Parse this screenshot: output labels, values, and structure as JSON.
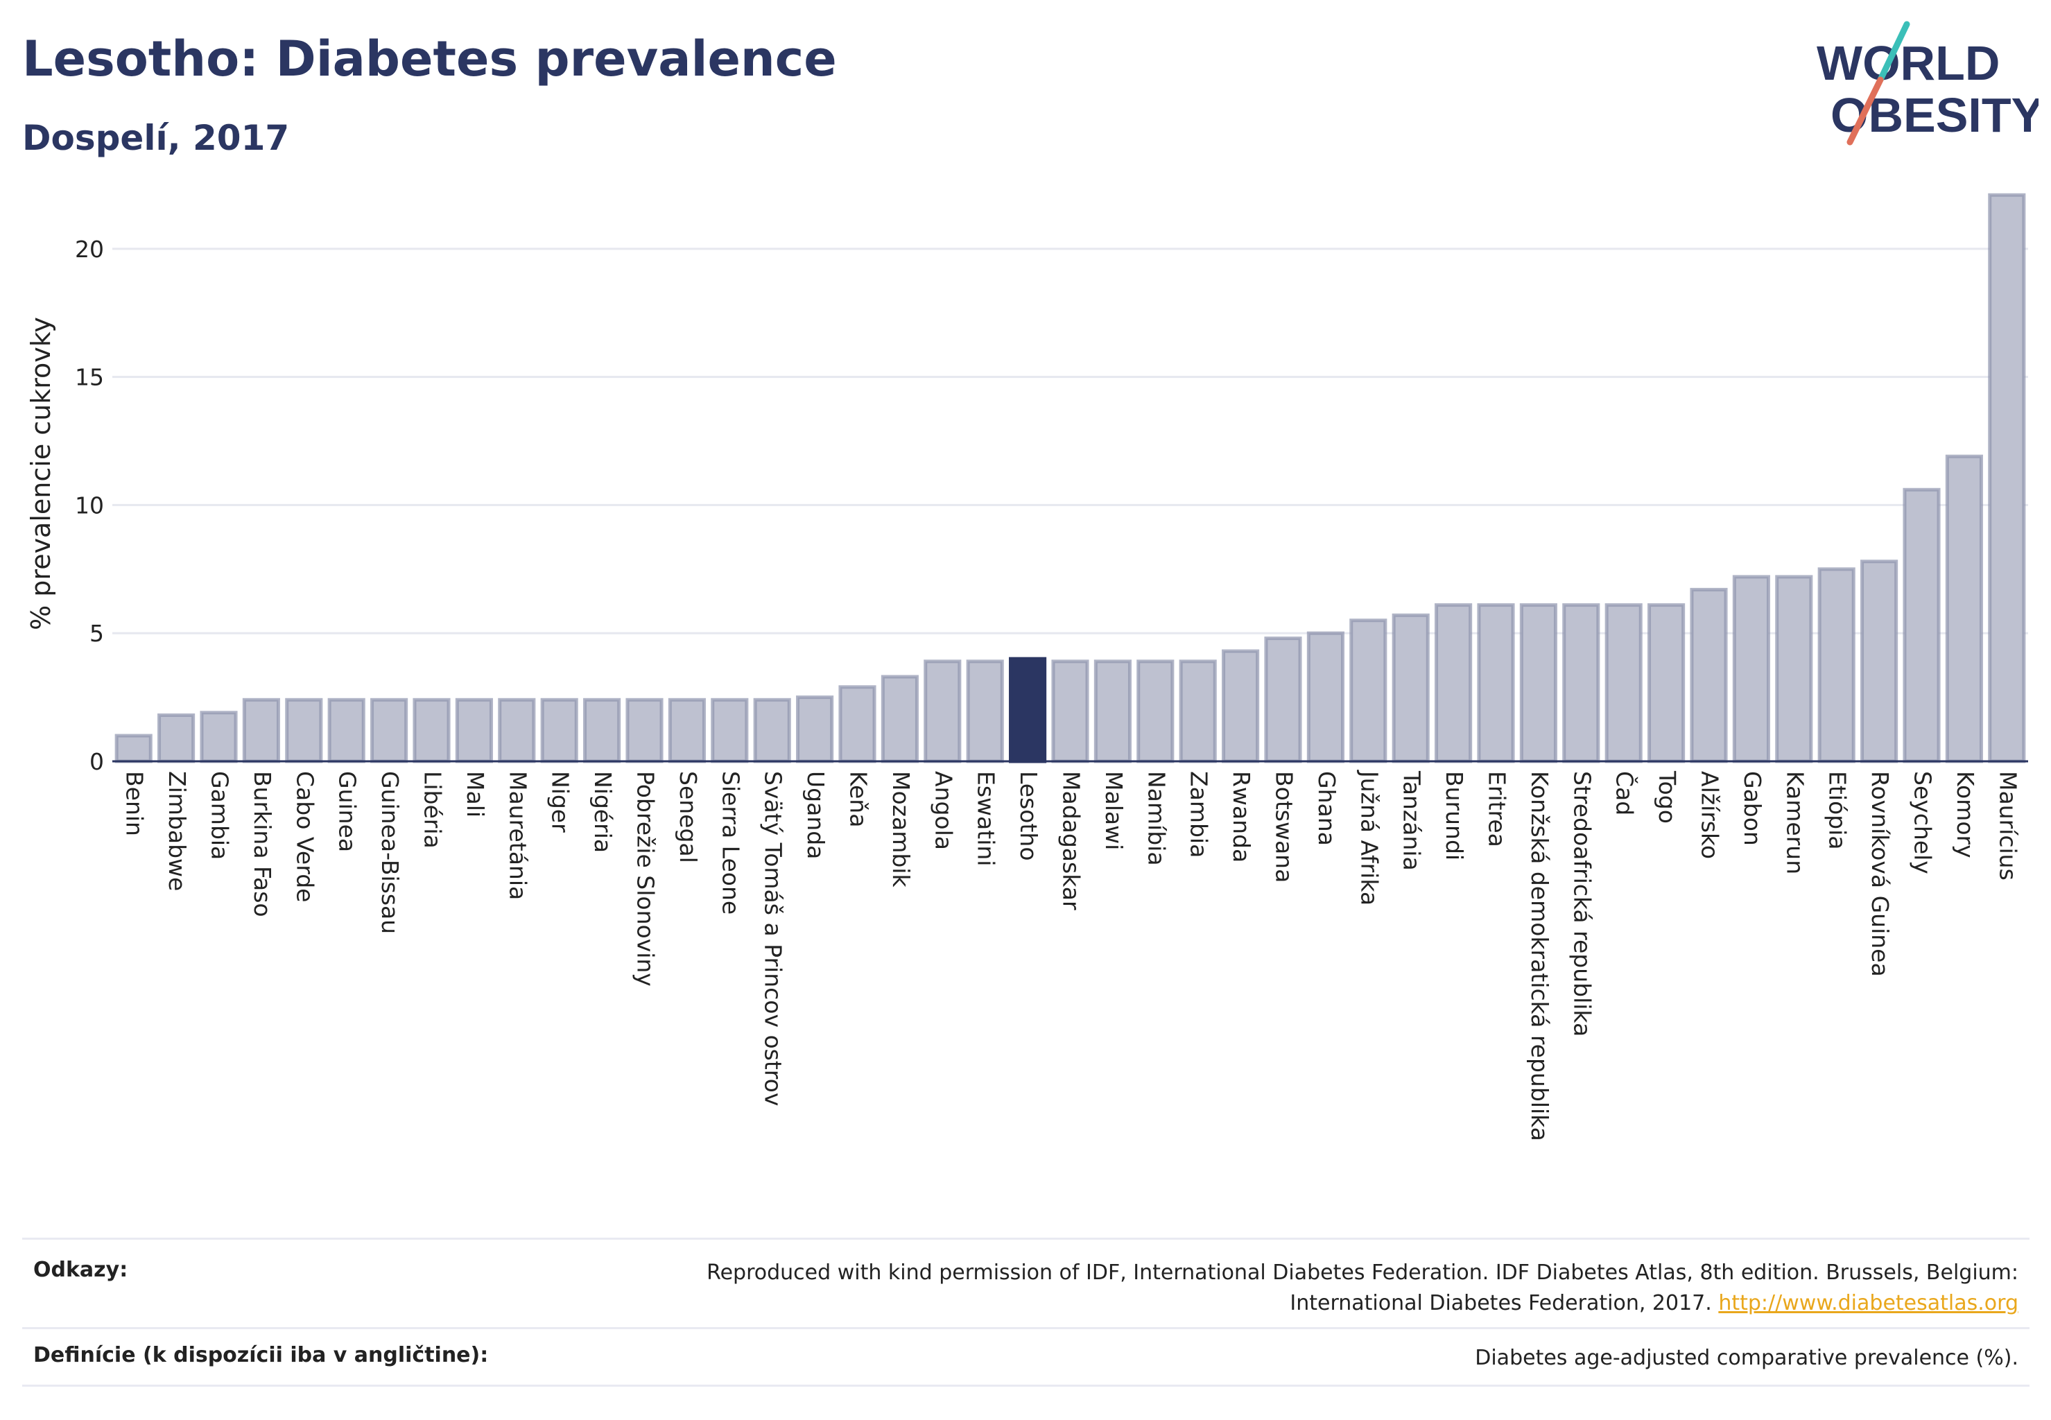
{
  "header": {
    "title": "Lesotho: Diabetes prevalence",
    "subtitle": "Dospelí, 2017"
  },
  "logo": {
    "line1": "WORLD",
    "line2": "OBESITY",
    "accent_color": "#e0705a",
    "accent2_color": "#3bbfb8",
    "brand_color": "#2b3662"
  },
  "colors": {
    "bar": "#bec1d0",
    "bar_stroke": "#8e94ae",
    "highlight": "#2b3662",
    "grid": "#e6e8ef",
    "axis": "#2b3662"
  },
  "chart_data": {
    "type": "bar",
    "title": "Lesotho: Diabetes prevalence",
    "subtitle": "Dospelí, 2017",
    "xlabel": "",
    "ylabel": "% prevalencie cukrovky",
    "ylim": [
      0,
      23
    ],
    "yticks": [
      0,
      5,
      10,
      15,
      20
    ],
    "grid": true,
    "highlight": "Lesotho",
    "categories": [
      "Benin",
      "Zimbabwe",
      "Gambia",
      "Burkina Faso",
      "Cabo Verde",
      "Guinea",
      "Guinea-Bissau",
      "Libéria",
      "Mali",
      "Mauretánia",
      "Niger",
      "Nigéria",
      "Pobrežie Slonoviny",
      "Senegal",
      "Sierra Leone",
      "Svätý Tomáš a Princov ostrov",
      "Uganda",
      "Keňa",
      "Mozambik",
      "Angola",
      "Eswatini",
      "Lesotho",
      "Madagaskar",
      "Malawi",
      "Namíbia",
      "Zambia",
      "Rwanda",
      "Botswana",
      "Ghana",
      "Južná Afrika",
      "Tanzánia",
      "Burundi",
      "Eritrea",
      "Konžská demokratická republika",
      "Stredoafrická republika",
      "Čad",
      "Togo",
      "Alžírsko",
      "Gabon",
      "Kamerun",
      "Etiópia",
      "Rovníková Guinea",
      "Seychely",
      "Komory",
      "Maurícius"
    ],
    "values": [
      1.0,
      1.8,
      1.9,
      2.4,
      2.4,
      2.4,
      2.4,
      2.4,
      2.4,
      2.4,
      2.4,
      2.4,
      2.4,
      2.4,
      2.4,
      2.4,
      2.5,
      2.9,
      3.3,
      3.9,
      3.9,
      4.0,
      3.9,
      3.9,
      3.9,
      3.9,
      4.3,
      4.8,
      5.0,
      5.5,
      5.7,
      6.1,
      6.1,
      6.1,
      6.1,
      6.1,
      6.1,
      6.7,
      7.2,
      7.2,
      7.5,
      7.8,
      10.6,
      11.9,
      22.1
    ]
  },
  "footer": {
    "refs_label": "Odkazy:",
    "refs_text_line1": "Reproduced with kind permission of IDF, International Diabetes Federation. IDF Diabetes Atlas, 8th edition. Brussels, Belgium:",
    "refs_text_line2": "International Diabetes Federation, 2017.",
    "refs_link": "http://www.diabetesatlas.org",
    "def_label": "Definície (k dispozícii iba v angličtine):",
    "def_text": "Diabetes age-adjusted comparative prevalence (%)."
  }
}
